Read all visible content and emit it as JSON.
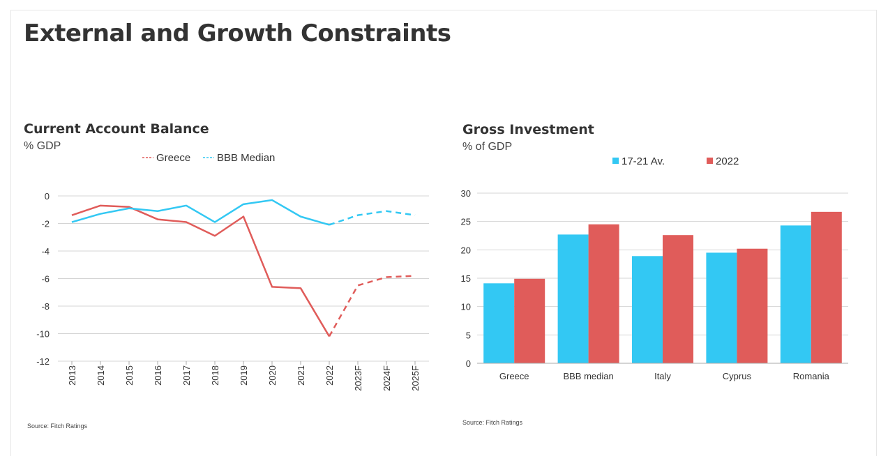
{
  "page": {
    "title": "External and Growth Constraints"
  },
  "colors": {
    "greece": "#e05c5a",
    "median": "#33c8f3",
    "grid": "#d4d4d4",
    "axis_text": "#333333"
  },
  "chart_data": [
    {
      "type": "line",
      "title": "Current Account Balance",
      "subtitle": "% GDP",
      "source": "Source: Fitch Ratings",
      "x": [
        "2013",
        "2014",
        "2015",
        "2016",
        "2017",
        "2018",
        "2019",
        "2020",
        "2021",
        "2022",
        "2023F",
        "2024F",
        "2025F"
      ],
      "ylim": [
        -12,
        0
      ],
      "yticks": [
        0,
        -2,
        -4,
        -6,
        -8,
        -10,
        -12
      ],
      "grid": true,
      "legend_position": "top",
      "forecast_from": "2022",
      "series": [
        {
          "name": "Greece",
          "color": "#e05c5a",
          "values": [
            -1.4,
            -0.7,
            -0.8,
            -1.7,
            -1.9,
            -2.9,
            -1.5,
            -6.6,
            -6.7,
            -10.2,
            -6.5,
            -5.9,
            -5.8
          ]
        },
        {
          "name": "BBB Median",
          "color": "#33c8f3",
          "values": [
            -1.9,
            -1.3,
            -0.9,
            -1.1,
            -0.7,
            -1.9,
            -0.6,
            -0.3,
            -1.5,
            -2.1,
            -1.4,
            -1.1,
            -1.4
          ]
        }
      ]
    },
    {
      "type": "bar",
      "title": "Gross Investment",
      "subtitle": "% of GDP",
      "source": "Source: Fitch Ratings",
      "categories": [
        "Greece",
        "BBB median",
        "Italy",
        "Cyprus",
        "Romania"
      ],
      "ylim": [
        0,
        30
      ],
      "yticks": [
        0,
        5,
        10,
        15,
        20,
        25,
        30
      ],
      "grid": true,
      "legend_position": "top",
      "series": [
        {
          "name": "17-21 Av.",
          "color": "#33c8f3",
          "values": [
            14.1,
            22.7,
            18.9,
            19.5,
            24.3
          ]
        },
        {
          "name": "2022",
          "color": "#e05c5a",
          "values": [
            14.9,
            24.5,
            22.6,
            20.2,
            26.7
          ]
        }
      ]
    }
  ]
}
